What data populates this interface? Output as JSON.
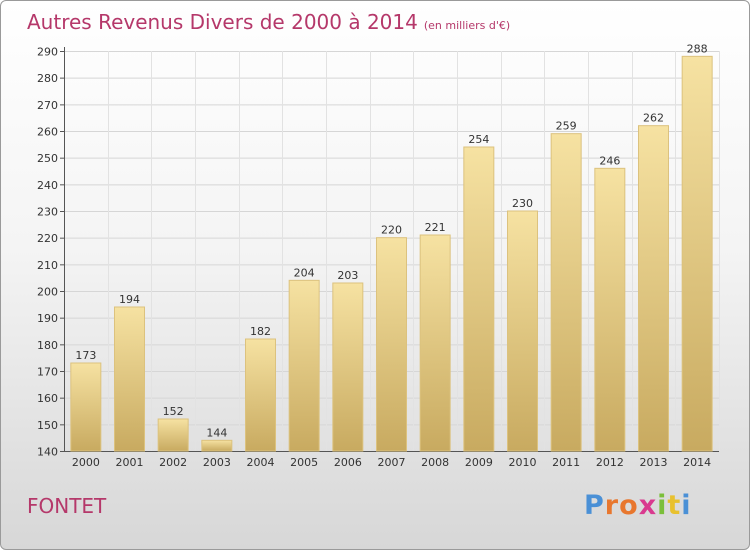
{
  "chart_data": {
    "type": "bar",
    "title": "Autres Revenus Divers de 2000 à 2014",
    "subtitle": "(en milliers d'€)",
    "categories": [
      "2000",
      "2001",
      "2002",
      "2003",
      "2004",
      "2005",
      "2006",
      "2007",
      "2008",
      "2009",
      "2010",
      "2011",
      "2012",
      "2013",
      "2014"
    ],
    "values": [
      173,
      194,
      152,
      144,
      182,
      204,
      203,
      220,
      221,
      254,
      230,
      259,
      246,
      262,
      288
    ],
    "ylim": [
      140,
      290
    ],
    "yticks": [
      140,
      150,
      160,
      170,
      180,
      190,
      200,
      210,
      220,
      230,
      240,
      250,
      260,
      270,
      280,
      290
    ],
    "grid": true,
    "colors": {
      "bar_top": "#f6e2a2",
      "bar_bottom": "#c8aa60",
      "bar_stroke": "#dcc27e"
    }
  },
  "commune": "FONTET",
  "logo": {
    "letters": [
      "P",
      "r",
      "o",
      "x",
      "i",
      "t",
      "i"
    ],
    "colors": [
      "#4a90d6",
      "#e8772e",
      "#e8772e",
      "#d93a8f",
      "#7bbf3a",
      "#e8c12e",
      "#4a90d6"
    ]
  },
  "colors": {
    "title": "#b5386a"
  }
}
